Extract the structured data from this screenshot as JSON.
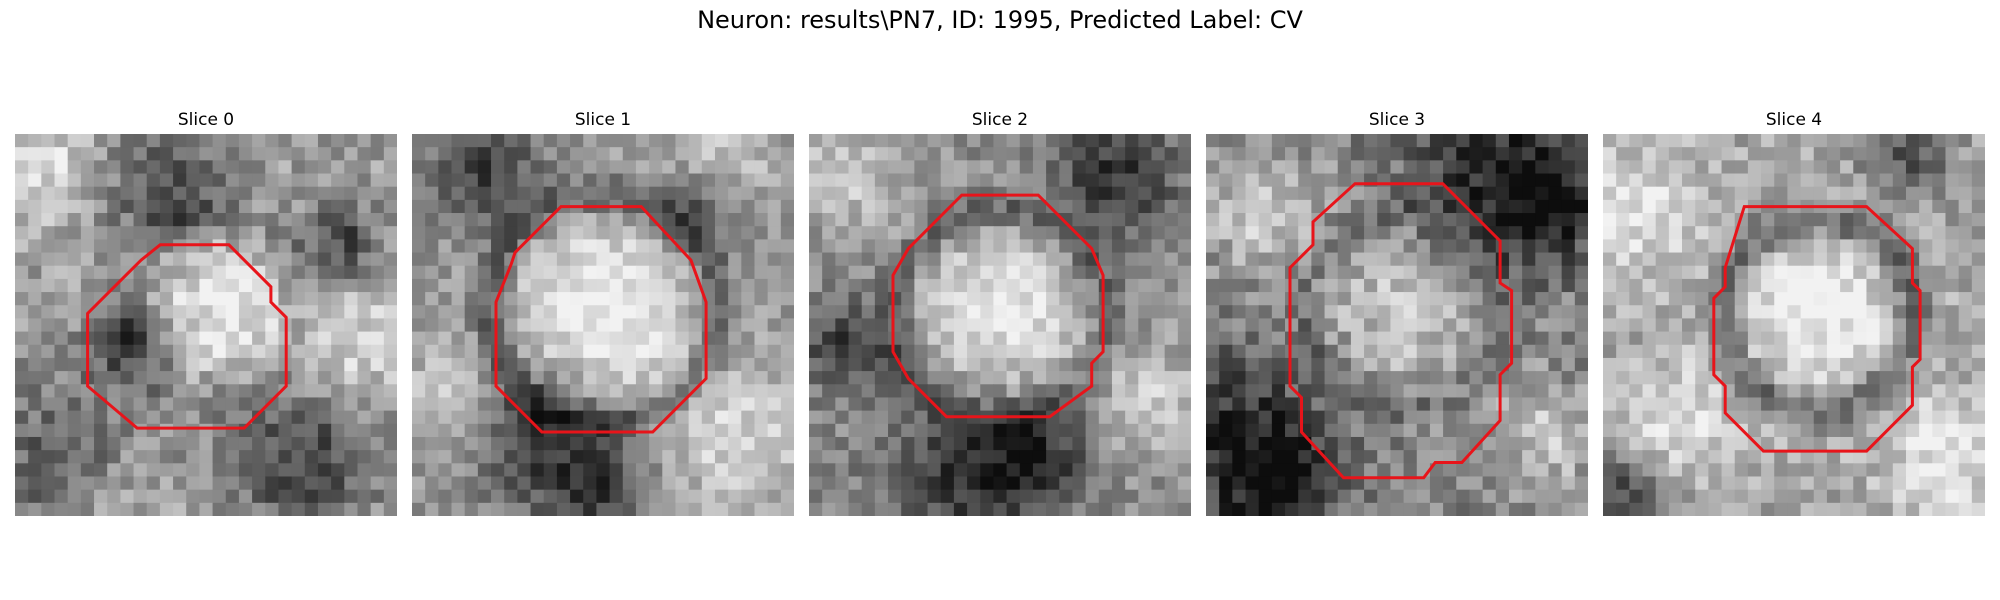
{
  "figure": {
    "title": "Neuron: results\\PN7, ID: 1995, Predicted Label: CV",
    "contour_color": "#e8141a"
  },
  "panels": [
    {
      "title": "Slice 0",
      "image": "grayscale-microscopy-slice-0"
    },
    {
      "title": "Slice 1",
      "image": "grayscale-microscopy-slice-1"
    },
    {
      "title": "Slice 2",
      "image": "grayscale-microscopy-slice-2"
    },
    {
      "title": "Slice 3",
      "image": "grayscale-microscopy-slice-3"
    },
    {
      "title": "Slice 4",
      "image": "grayscale-microscopy-slice-4"
    }
  ]
}
